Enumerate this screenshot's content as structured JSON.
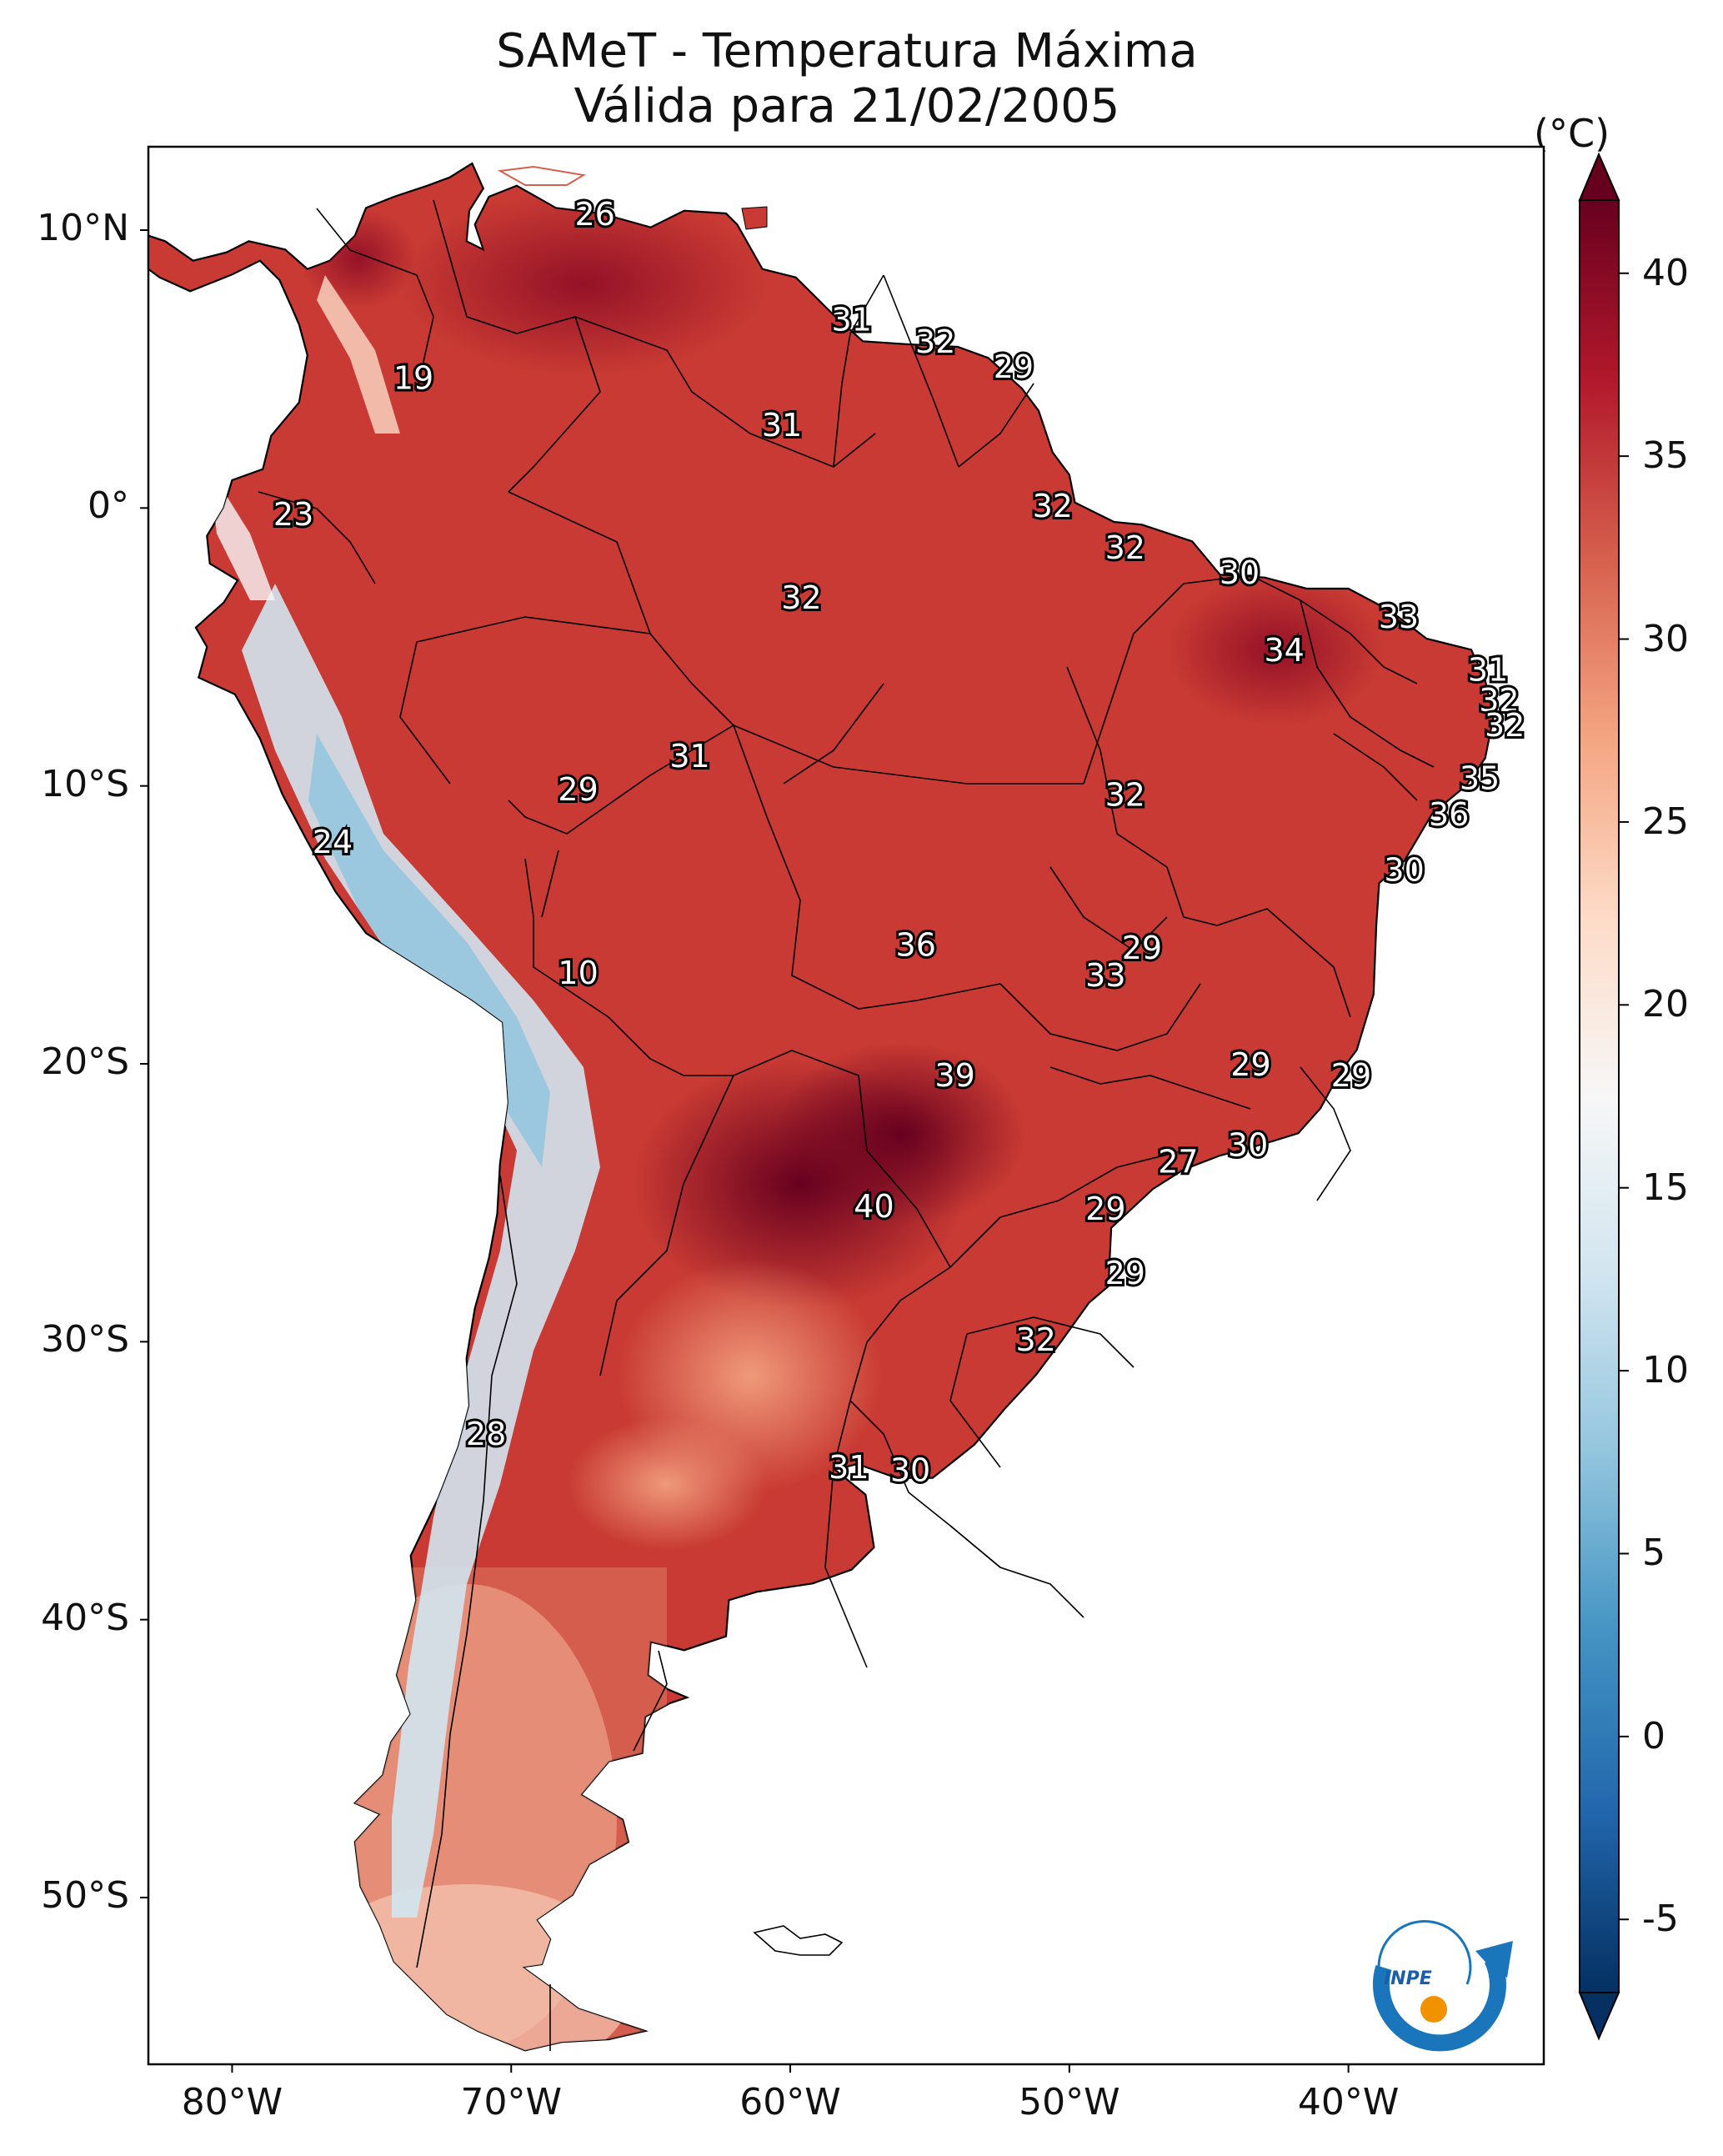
{
  "title": {
    "line1": "SAMeT - Temperatura Máxima",
    "line2": "Válida para 21/02/2005"
  },
  "colorbar": {
    "unit": "(°C)",
    "ticks": [
      "40",
      "35",
      "30",
      "25",
      "20",
      "15",
      "10",
      "5",
      "0",
      "-5"
    ],
    "vmin": -7,
    "vmax": 42,
    "stops": [
      "#053061",
      "#2166ac",
      "#4393c3",
      "#92c5de",
      "#d1e5f0",
      "#f7f7f7",
      "#fddbc7",
      "#f4a582",
      "#d6604d",
      "#b2182b",
      "#67001f"
    ]
  },
  "axes": {
    "lat_ticks": [
      "10°N",
      "0°",
      "10°S",
      "20°S",
      "30°S",
      "40°S",
      "50°S"
    ],
    "lon_ticks": [
      "80°W",
      "70°W",
      "60°W",
      "50°W",
      "40°W"
    ],
    "lon_range": [
      -83,
      -33
    ],
    "lat_range": [
      -56,
      13
    ]
  },
  "map_labels": [
    {
      "text": "26",
      "lon": -67.0,
      "lat": 10.5
    },
    {
      "text": "31",
      "lon": -57.8,
      "lat": 6.7
    },
    {
      "text": "32",
      "lon": -54.8,
      "lat": 5.9
    },
    {
      "text": "29",
      "lon": -52.0,
      "lat": 5.0
    },
    {
      "text": "19",
      "lon": -73.5,
      "lat": 4.6
    },
    {
      "text": "31",
      "lon": -60.3,
      "lat": 2.9
    },
    {
      "text": "23",
      "lon": -77.8,
      "lat": -0.3
    },
    {
      "text": "32",
      "lon": -50.6,
      "lat": 0.0
    },
    {
      "text": "32",
      "lon": -48.0,
      "lat": -1.5
    },
    {
      "text": "30",
      "lon": -43.9,
      "lat": -2.4
    },
    {
      "text": "32",
      "lon": -59.6,
      "lat": -3.3
    },
    {
      "text": "33",
      "lon": -38.2,
      "lat": -4.0
    },
    {
      "text": "34",
      "lon": -42.3,
      "lat": -5.2
    },
    {
      "text": "31",
      "lon": -35.0,
      "lat": -5.9
    },
    {
      "text": "32",
      "lon": -34.6,
      "lat": -7.0
    },
    {
      "text": "32",
      "lon": -34.4,
      "lat": -7.9
    },
    {
      "text": "31",
      "lon": -63.6,
      "lat": -9.0
    },
    {
      "text": "29",
      "lon": -67.6,
      "lat": -10.2
    },
    {
      "text": "35",
      "lon": -35.3,
      "lat": -9.8
    },
    {
      "text": "32",
      "lon": -48.0,
      "lat": -10.4
    },
    {
      "text": "36",
      "lon": -36.4,
      "lat": -11.1
    },
    {
      "text": "24",
      "lon": -76.4,
      "lat": -12.1
    },
    {
      "text": "30",
      "lon": -38.0,
      "lat": -13.1
    },
    {
      "text": "36",
      "lon": -55.5,
      "lat": -15.8
    },
    {
      "text": "29",
      "lon": -47.4,
      "lat": -15.9
    },
    {
      "text": "10",
      "lon": -67.6,
      "lat": -16.8
    },
    {
      "text": "33",
      "lon": -48.7,
      "lat": -16.9
    },
    {
      "text": "29",
      "lon": -43.5,
      "lat": -20.1
    },
    {
      "text": "29",
      "lon": -39.9,
      "lat": -20.5
    },
    {
      "text": "39",
      "lon": -54.1,
      "lat": -20.5
    },
    {
      "text": "30",
      "lon": -43.6,
      "lat": -23.0
    },
    {
      "text": "27",
      "lon": -46.1,
      "lat": -23.6
    },
    {
      "text": "40",
      "lon": -57.0,
      "lat": -25.2
    },
    {
      "text": "29",
      "lon": -48.7,
      "lat": -25.3
    },
    {
      "text": "29",
      "lon": -48.0,
      "lat": -27.6
    },
    {
      "text": "32",
      "lon": -51.2,
      "lat": -30.0
    },
    {
      "text": "28",
      "lon": -70.9,
      "lat": -33.4
    },
    {
      "text": "31",
      "lon": -57.9,
      "lat": -34.6
    },
    {
      "text": "30",
      "lon": -55.7,
      "lat": -34.7
    }
  ]
}
